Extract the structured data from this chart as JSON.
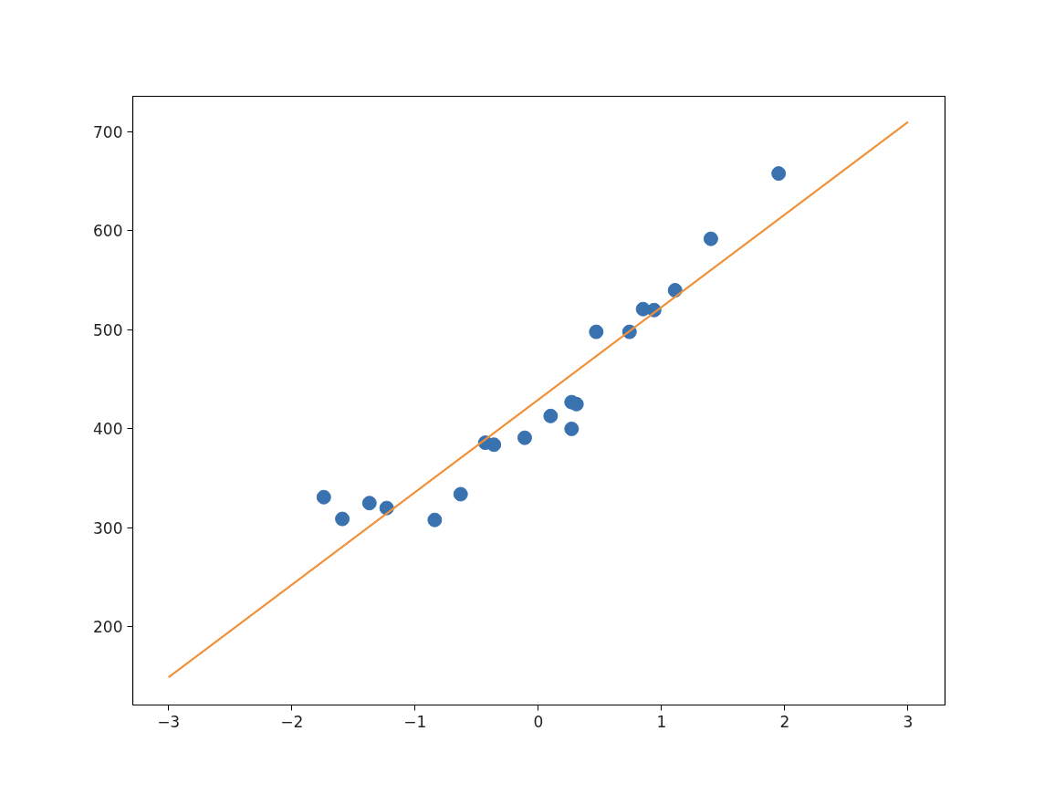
{
  "chart_data": {
    "type": "scatter",
    "xlim": [
      -3.29,
      3.3
    ],
    "ylim": [
      121,
      736
    ],
    "xticks": [
      {
        "value": -3,
        "label": "−3"
      },
      {
        "value": -2,
        "label": "−2"
      },
      {
        "value": -1,
        "label": "−1"
      },
      0,
      1,
      2,
      3
    ],
    "yticks": [
      200,
      300,
      400,
      500,
      600,
      700
    ],
    "grid": false,
    "series": [
      {
        "marker": "circle",
        "color": "#3a72b0",
        "x": [
          -1.74,
          -1.59,
          -1.37,
          -1.23,
          -0.84,
          -0.63,
          -0.43,
          -0.36,
          -0.11,
          0.1,
          0.27,
          0.31,
          0.27,
          0.47,
          0.74,
          0.85,
          0.94,
          1.11,
          1.4,
          1.95
        ],
        "values": [
          331,
          309,
          325,
          320,
          308,
          334,
          386,
          384,
          391,
          413,
          427,
          425,
          400,
          498,
          498,
          521,
          520,
          540,
          592,
          658
        ]
      },
      {
        "type": "line",
        "color": "#f0913a",
        "line_style": "solid",
        "x": [
          -3,
          3
        ],
        "values": [
          149,
          710
        ]
      }
    ]
  }
}
